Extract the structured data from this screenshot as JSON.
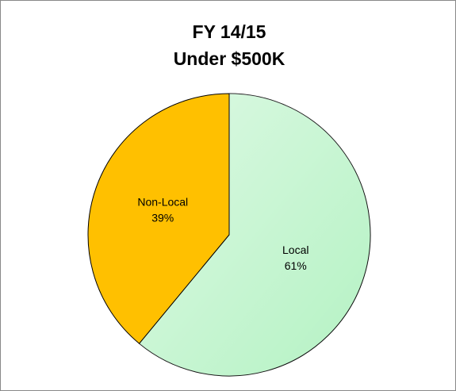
{
  "chart_data": {
    "type": "pie",
    "title": "FY 14/15",
    "subtitle": "Under $500K",
    "categories": [
      "Local",
      "Non-Local"
    ],
    "values": [
      61,
      39
    ],
    "value_labels": [
      "61%",
      "39%"
    ],
    "colors": [
      "#b4f2c3",
      "#ffc000"
    ],
    "start": "top",
    "direction": "clockwise"
  }
}
